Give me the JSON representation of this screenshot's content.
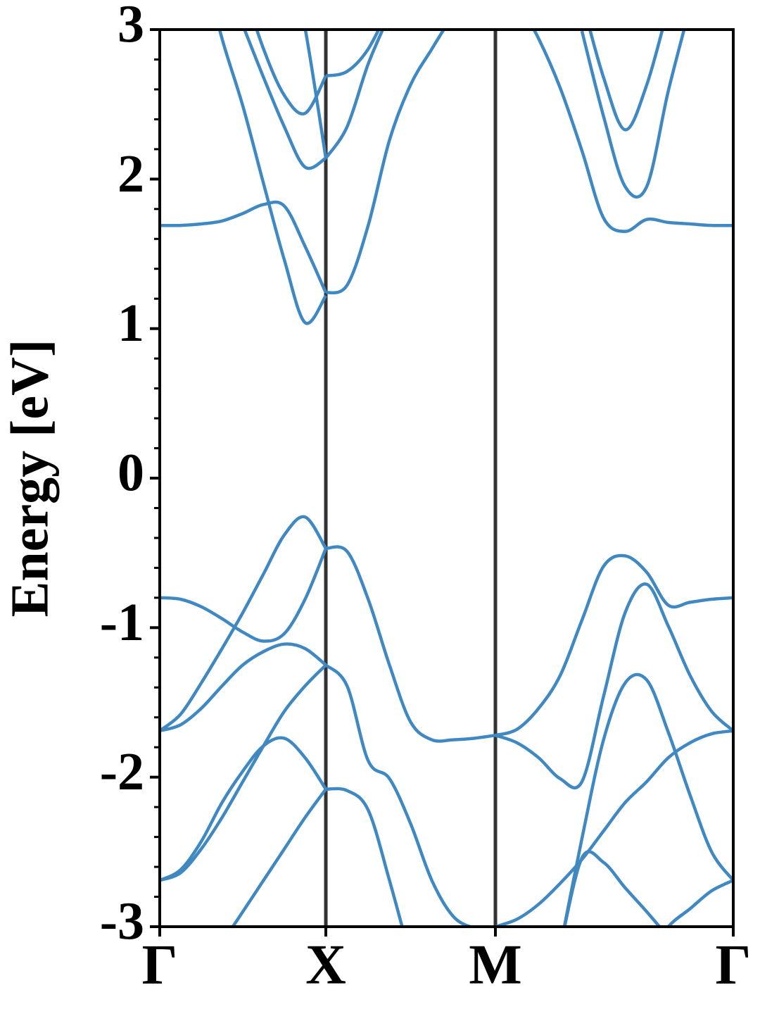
{
  "chart_data": {
    "type": "line",
    "ylabel": "Energy [eV]",
    "color": "#3f88c2",
    "symmetry_line_color": "#333333",
    "x": [
      0,
      0.125,
      0.25,
      0.375,
      0.5,
      0.625,
      0.75,
      0.875,
      1,
      1.128,
      1.255,
      1.383,
      1.51,
      1.638,
      1.766,
      1.893,
      2.021,
      2.151,
      2.281,
      2.411,
      2.542,
      2.672,
      2.802,
      2.932,
      3.062,
      3.193,
      3.323,
      3.453
    ],
    "xlim": [
      0,
      3.453
    ],
    "xticks": [
      {
        "value": 0,
        "label": "Γ"
      },
      {
        "value": 1,
        "label": "X"
      },
      {
        "value": 2.021,
        "label": "M"
      },
      {
        "value": 3.453,
        "label": "Γ"
      }
    ],
    "ylim": [
      -3,
      3
    ],
    "yticks": [
      -3,
      -2,
      -1,
      0,
      1,
      2,
      3
    ],
    "yminorticks": [
      -2.8,
      -2.6,
      -2.4,
      -2.2,
      -1.8,
      -1.6,
      -1.4,
      -1.2,
      -0.8,
      -0.6,
      -0.4,
      -0.2,
      0.2,
      0.4,
      0.6,
      0.8,
      1.2,
      1.4,
      1.6,
      1.8,
      2.2,
      2.4,
      2.6,
      2.8
    ],
    "series": [
      {
        "values": [
          -1.69,
          -1.58,
          -1.37,
          -1.14,
          -0.9,
          -0.64,
          -0.38,
          -0.26,
          -0.47,
          null,
          null,
          null,
          null,
          null,
          null,
          null,
          null,
          null,
          null,
          null,
          null,
          null,
          null,
          null,
          null,
          null,
          null,
          null
        ]
      },
      {
        "values": [
          -0.8,
          -0.81,
          -0.86,
          -0.94,
          -1.03,
          -1.09,
          -1.04,
          -0.81,
          -0.47,
          null,
          null,
          null,
          null,
          null,
          null,
          null,
          null,
          null,
          null,
          null,
          null,
          null,
          null,
          null,
          null,
          null,
          null,
          null
        ]
      },
      {
        "values": [
          -1.69,
          -1.65,
          -1.54,
          -1.39,
          -1.25,
          -1.16,
          -1.11,
          -1.14,
          -1.25,
          null,
          null,
          null,
          null,
          null,
          null,
          null,
          null,
          null,
          null,
          null,
          null,
          null,
          null,
          null,
          null,
          null,
          null,
          null
        ]
      },
      {
        "values": [
          -2.69,
          -2.64,
          -2.48,
          -2.27,
          -2.03,
          -1.79,
          -1.56,
          -1.39,
          -1.25,
          null,
          null,
          null,
          null,
          null,
          null,
          null,
          null,
          null,
          null,
          null,
          null,
          null,
          null,
          null,
          null,
          null,
          null,
          null
        ]
      },
      {
        "values": [
          -2.69,
          -2.62,
          -2.43,
          -2.17,
          -1.96,
          -1.79,
          -1.74,
          -1.87,
          -2.08,
          null,
          null,
          null,
          null,
          null,
          null,
          null,
          null,
          null,
          null,
          null,
          null,
          null,
          null,
          null,
          null,
          null,
          null,
          null
        ]
      },
      {
        "values": [
          null,
          null,
          -3.33,
          -3.11,
          -2.9,
          -2.69,
          -2.48,
          -2.27,
          -2.08,
          null,
          null,
          null,
          null,
          null,
          null,
          null,
          null,
          null,
          null,
          null,
          null,
          null,
          null,
          null,
          null,
          null,
          null,
          null
        ]
      },
      {
        "values": [
          null,
          null,
          null,
          null,
          null,
          null,
          null,
          null,
          -0.47,
          -0.49,
          -0.81,
          -1.25,
          -1.63,
          -1.75,
          -1.75,
          -1.74,
          -1.72,
          null,
          null,
          null,
          null,
          null,
          null,
          null,
          null,
          null,
          null,
          null
        ]
      },
      {
        "values": [
          null,
          null,
          null,
          null,
          null,
          null,
          null,
          null,
          -1.25,
          -1.39,
          -1.89,
          -2.01,
          -2.31,
          -2.69,
          -2.93,
          -3.01,
          -3.04,
          null,
          null,
          null,
          null,
          null,
          null,
          null,
          null,
          null,
          null,
          null
        ]
      },
      {
        "values": [
          null,
          null,
          null,
          null,
          null,
          null,
          null,
          null,
          -2.08,
          -2.09,
          -2.22,
          -2.69,
          -3.21,
          null,
          null,
          null,
          null,
          null,
          null,
          null,
          null,
          null,
          null,
          null,
          null,
          null,
          null,
          null
        ]
      },
      {
        "values": [
          null,
          null,
          null,
          null,
          null,
          null,
          null,
          null,
          null,
          null,
          null,
          null,
          null,
          null,
          null,
          null,
          -1.72,
          -1.68,
          -1.54,
          -1.32,
          -0.95,
          -0.59,
          -0.52,
          -0.63,
          -0.85,
          -0.83,
          -0.81,
          -0.8
        ]
      },
      {
        "values": [
          null,
          null,
          null,
          null,
          null,
          null,
          null,
          null,
          null,
          null,
          null,
          null,
          null,
          null,
          null,
          null,
          -1.72,
          -1.77,
          -1.87,
          -2.01,
          -2.03,
          -1.46,
          -0.9,
          -0.71,
          -0.99,
          -1.32,
          -1.56,
          -1.69
        ]
      },
      {
        "values": [
          null,
          null,
          null,
          null,
          null,
          null,
          null,
          null,
          null,
          null,
          null,
          null,
          null,
          null,
          null,
          null,
          null,
          null,
          null,
          -3.14,
          -2.41,
          -1.75,
          -1.37,
          -1.35,
          -1.7,
          -2.12,
          -2.5,
          -2.69
        ]
      },
      {
        "values": [
          null,
          null,
          null,
          null,
          null,
          null,
          null,
          null,
          null,
          null,
          null,
          null,
          null,
          null,
          null,
          null,
          -3.0,
          -2.95,
          -2.85,
          -2.71,
          -2.55,
          -2.36,
          -2.17,
          -2.03,
          -1.87,
          -1.77,
          -1.71,
          -1.69
        ]
      },
      {
        "values": [
          null,
          null,
          null,
          null,
          null,
          null,
          null,
          null,
          null,
          null,
          null,
          null,
          null,
          null,
          null,
          null,
          null,
          null,
          null,
          -3.14,
          -2.54,
          -2.57,
          -2.74,
          -2.9,
          -3.07,
          null,
          null,
          null
        ]
      },
      {
        "values": [
          null,
          null,
          null,
          null,
          null,
          null,
          null,
          null,
          null,
          null,
          null,
          null,
          null,
          null,
          null,
          null,
          null,
          null,
          null,
          null,
          null,
          null,
          null,
          -3.21,
          -3.0,
          -2.88,
          -2.76,
          -2.69
        ]
      },
      {
        "values": [
          1.69,
          1.69,
          1.7,
          1.72,
          1.77,
          1.83,
          1.82,
          1.55,
          1.24,
          null,
          null,
          null,
          null,
          null,
          null,
          null,
          null,
          null,
          null,
          null,
          null,
          null,
          null,
          null,
          null,
          null,
          null,
          null
        ]
      },
      {
        "values": [
          null,
          null,
          3.48,
          2.94,
          2.49,
          1.97,
          1.46,
          1.04,
          1.22,
          null,
          null,
          null,
          null,
          null,
          null,
          null,
          null,
          null,
          null,
          null,
          null,
          null,
          null,
          null,
          null,
          null,
          null,
          null
        ]
      },
      {
        "values": [
          null,
          null,
          null,
          null,
          3.03,
          2.68,
          2.35,
          2.08,
          2.14,
          null,
          null,
          null,
          null,
          null,
          null,
          null,
          null,
          null,
          null,
          null,
          null,
          null,
          null,
          null,
          null,
          null,
          null,
          null
        ]
      },
      {
        "values": [
          null,
          null,
          null,
          null,
          3.29,
          2.87,
          2.56,
          2.44,
          2.69,
          null,
          null,
          null,
          null,
          null,
          null,
          null,
          null,
          null,
          null,
          null,
          null,
          null,
          null,
          null,
          null,
          null,
          null,
          null
        ]
      },
      {
        "values": [
          null,
          null,
          null,
          null,
          null,
          null,
          3.67,
          3.01,
          2.14,
          null,
          null,
          null,
          null,
          null,
          null,
          null,
          null,
          null,
          null,
          null,
          null,
          null,
          null,
          null,
          null,
          null,
          null,
          null
        ]
      },
      {
        "values": [
          null,
          null,
          null,
          null,
          null,
          null,
          null,
          null,
          1.24,
          1.29,
          1.69,
          2.26,
          2.63,
          2.87,
          3.1,
          null,
          null,
          null,
          null,
          null,
          null,
          null,
          null,
          null,
          null,
          null,
          null,
          null
        ]
      },
      {
        "values": [
          null,
          null,
          null,
          null,
          null,
          null,
          null,
          null,
          2.14,
          2.35,
          2.77,
          3.1,
          null,
          null,
          null,
          null,
          null,
          null,
          null,
          null,
          null,
          null,
          null,
          null,
          null,
          null,
          null,
          null
        ]
      },
      {
        "values": [
          null,
          null,
          null,
          null,
          null,
          null,
          null,
          null,
          2.69,
          2.72,
          2.87,
          3.15,
          null,
          null,
          null,
          null,
          null,
          null,
          null,
          null,
          null,
          null,
          null,
          null,
          null,
          null,
          null,
          null
        ]
      },
      {
        "values": [
          null,
          null,
          null,
          null,
          null,
          null,
          null,
          null,
          null,
          null,
          null,
          null,
          null,
          null,
          null,
          null,
          null,
          3.2,
          2.94,
          2.61,
          2.19,
          1.74,
          1.65,
          1.73,
          1.71,
          1.7,
          1.69,
          1.69
        ]
      },
      {
        "values": [
          null,
          null,
          null,
          null,
          null,
          null,
          null,
          null,
          null,
          null,
          null,
          null,
          null,
          null,
          null,
          null,
          null,
          null,
          null,
          null,
          2.99,
          2.42,
          1.95,
          1.95,
          2.59,
          3.15,
          null,
          null
        ]
      },
      {
        "values": [
          null,
          null,
          null,
          null,
          null,
          null,
          null,
          null,
          null,
          null,
          null,
          null,
          null,
          null,
          null,
          null,
          null,
          null,
          null,
          null,
          3.2,
          2.68,
          2.33,
          2.63,
          3.15,
          null,
          null,
          null
        ]
      }
    ]
  }
}
